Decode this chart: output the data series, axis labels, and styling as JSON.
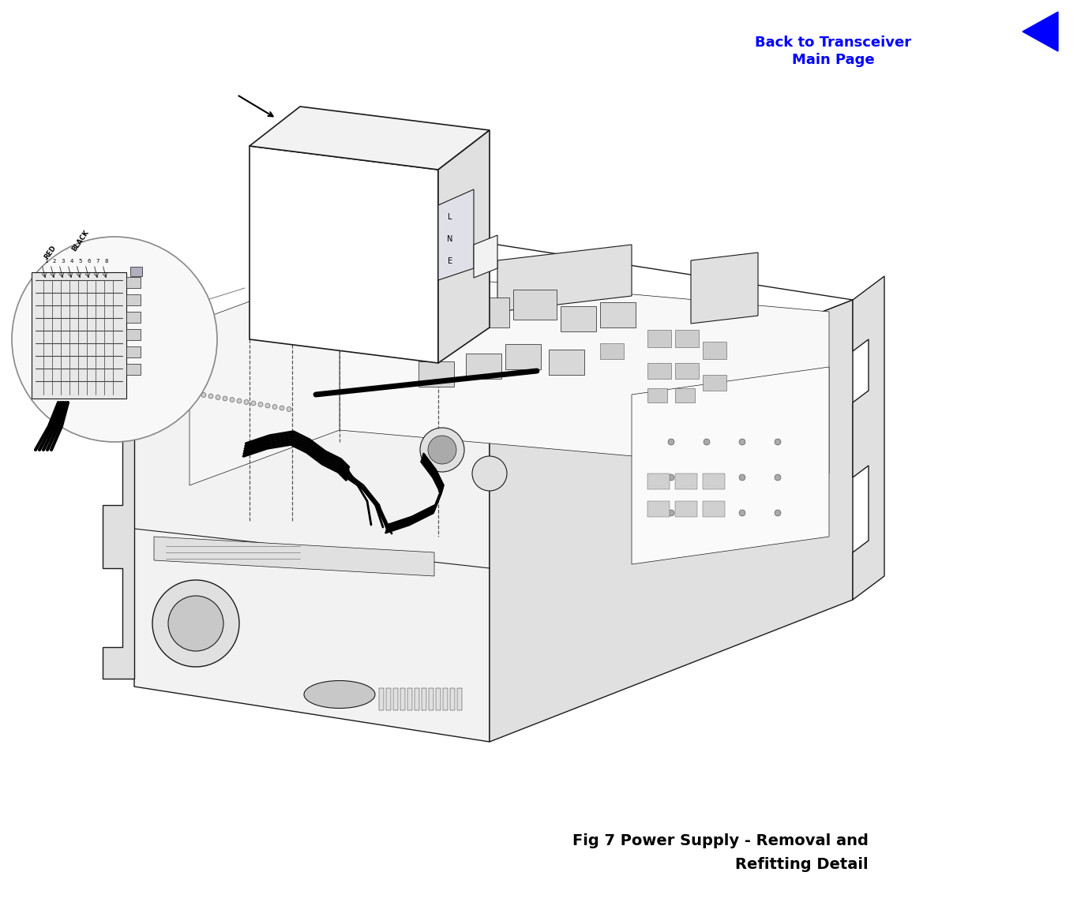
{
  "background_color": "#ffffff",
  "top_right_link_text": "Back to Transceiver\nMain Page",
  "top_right_link_color": "#0000ff",
  "arrow_color": "#0000ff",
  "caption_line1": "Fig 7 Power Supply - Removal and",
  "caption_line2": "Refitting Detail",
  "caption_fontsize": 14,
  "figure_width": 13.83,
  "figure_height": 11.43,
  "dpi": 100,
  "line_color": "#1a1a1a",
  "fill_white": "#ffffff",
  "fill_light": "#f2f2f2",
  "fill_medium": "#e0e0e0",
  "fill_dark": "#c8c8c8"
}
